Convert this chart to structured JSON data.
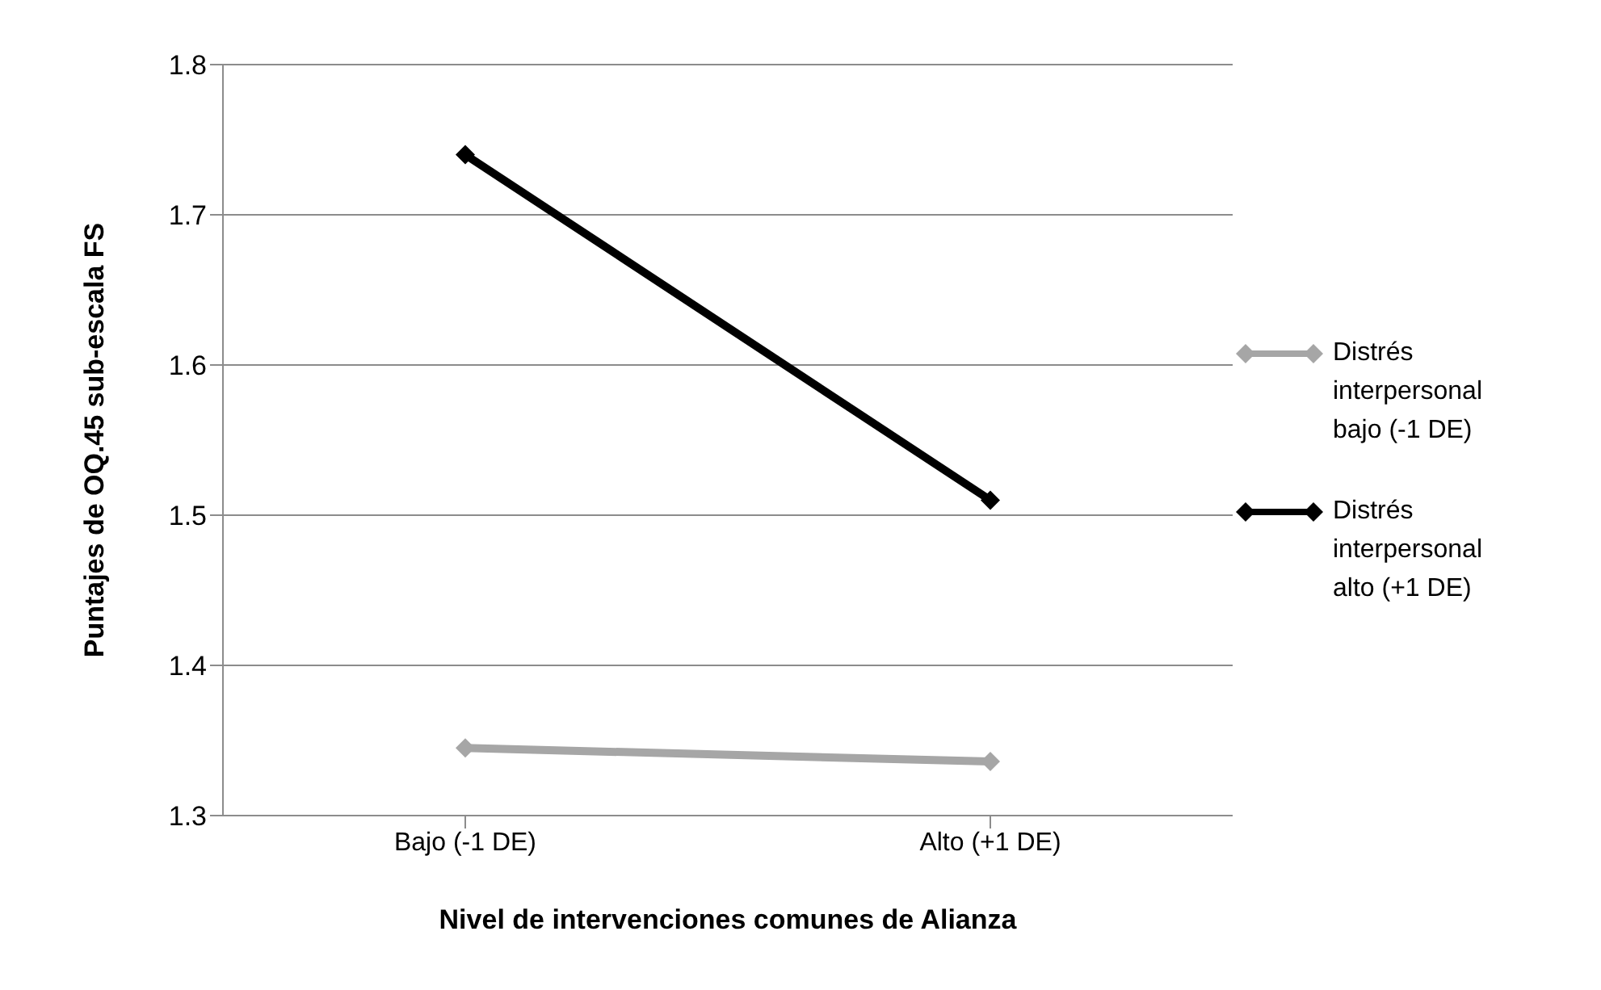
{
  "chart_data": {
    "type": "line",
    "xlabel": "Nivel de intervenciones comunes de Alianza",
    "ylabel": "Puntajes de OQ.45 sub-escala FS",
    "categories": [
      "Bajo (-1 DE)",
      "Alto (+1 DE)"
    ],
    "series": [
      {
        "name": "Distrés interpersonal bajo (-1 DE)",
        "color": "#a6a6a6",
        "values": [
          1.345,
          1.336
        ]
      },
      {
        "name": "Distrés interpersonal alto (+1 DE)",
        "color": "#000000",
        "values": [
          1.74,
          1.51
        ]
      }
    ],
    "ylim": [
      1.3,
      1.8
    ],
    "yticks": [
      1.3,
      1.4,
      1.5,
      1.6,
      1.7,
      1.8
    ],
    "grid": "y",
    "legend": "right",
    "marker": "diamond",
    "line_style": "solid"
  }
}
